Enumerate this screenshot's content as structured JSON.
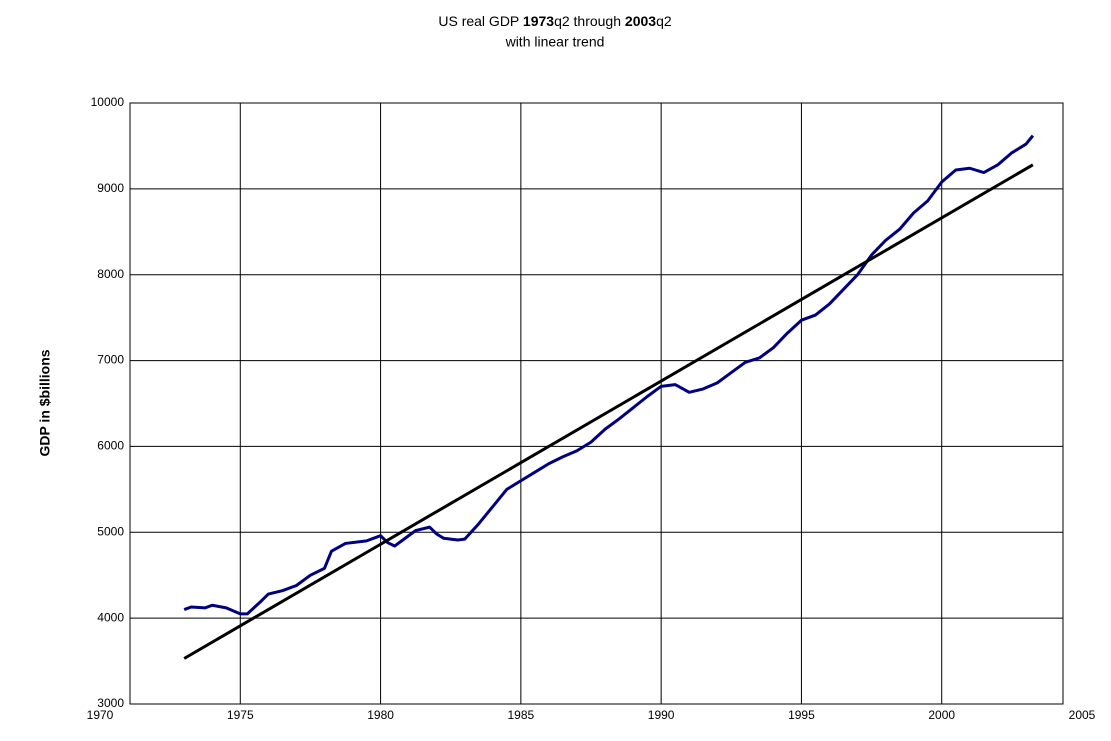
{
  "chart_data": {
    "type": "line",
    "title": [
      {
        "text": "US real GDP ",
        "bold": false
      },
      {
        "text": "1973",
        "bold": true
      },
      {
        "text": "q2 through ",
        "bold": false
      },
      {
        "text": "2003",
        "bold": true
      },
      {
        "text": "q2",
        "bold": false
      }
    ],
    "subtitle": "with linear trend",
    "y_label": "GDP in $billions",
    "xlim": [
      1970,
      2005
    ],
    "xticks": [
      1970,
      1975,
      1980,
      1985,
      1990,
      1995,
      2000,
      2005
    ],
    "ylim": [
      3000,
      10000
    ],
    "yticks": [
      3000,
      4000,
      5000,
      6000,
      7000,
      8000,
      9000,
      10000
    ],
    "grid": true,
    "series": [
      {
        "name": "GDP",
        "color": "#000080",
        "x": [
          1973.0,
          1973.25,
          1973.75,
          1974.0,
          1974.5,
          1975.0,
          1975.25,
          1975.75,
          1976.0,
          1976.5,
          1977.0,
          1977.5,
          1978.0,
          1978.25,
          1978.75,
          1979.5,
          1980.0,
          1980.25,
          1980.5,
          1980.75,
          1981.25,
          1981.75,
          1982.0,
          1982.25,
          1982.75,
          1983.0,
          1983.5,
          1984.0,
          1984.5,
          1985.0,
          1985.5,
          1986.0,
          1986.5,
          1987.0,
          1987.5,
          1988.0,
          1988.5,
          1989.0,
          1989.5,
          1990.0,
          1990.5,
          1991.0,
          1991.5,
          1992.0,
          1992.5,
          1993.0,
          1993.5,
          1994.0,
          1994.5,
          1995.0,
          1995.5,
          1996.0,
          1996.5,
          1997.0,
          1997.5,
          1998.0,
          1998.5,
          1999.0,
          1999.5,
          2000.0,
          2000.5,
          2001.0,
          2001.5,
          2002.0,
          2002.5,
          2003.0,
          2003.25
        ],
        "values": [
          4100,
          4130,
          4120,
          4150,
          4120,
          4050,
          4050,
          4200,
          4280,
          4320,
          4380,
          4500,
          4580,
          4780,
          4870,
          4900,
          4960,
          4880,
          4840,
          4900,
          5020,
          5060,
          4980,
          4930,
          4910,
          4920,
          5100,
          5300,
          5500,
          5600,
          5700,
          5800,
          5880,
          5950,
          6050,
          6200,
          6320,
          6450,
          6580,
          6700,
          6720,
          6630,
          6670,
          6740,
          6860,
          6980,
          7030,
          7150,
          7320,
          7470,
          7530,
          7660,
          7830,
          8000,
          8230,
          8400,
          8530,
          8720,
          8860,
          9080,
          9220,
          9240,
          9190,
          9280,
          9420,
          9520,
          9620
        ]
      },
      {
        "name": "Linear trend",
        "color": "#000000",
        "x": [
          1973.0,
          2003.25
        ],
        "values": [
          3530,
          9280
        ]
      }
    ]
  }
}
